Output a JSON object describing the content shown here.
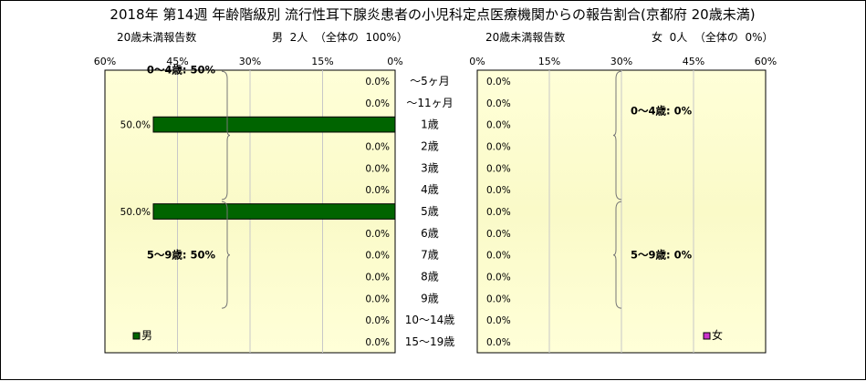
{
  "title": "2018年 第14週 年齢階級別 流行性耳下腺炎患者の小児科定点医療機関からの報告割合(京都府 20歳未満)",
  "header": {
    "left_subtitle": "20歳未満報告数",
    "left_summary": "男  2人  （全体の  100%）",
    "right_subtitle": "20歳未満報告数",
    "right_summary": "女  0人  （全体の  0%）"
  },
  "colors": {
    "male_bar": "#006400",
    "female_legend": "#cc33cc",
    "plot_gradient_edge": "#ffffd8",
    "plot_gradient_center": "#fafac8"
  },
  "chart_data": {
    "type": "bar",
    "orientation": "horizontal-population-pyramid",
    "categories": [
      "～5ヶ月",
      "～11ヶ月",
      "1歳",
      "2歳",
      "3歳",
      "4歳",
      "5歳",
      "6歳",
      "7歳",
      "8歳",
      "9歳",
      "10～14歳",
      "15～19歳"
    ],
    "series": [
      {
        "name": "男",
        "values": [
          0,
          0,
          50,
          0,
          0,
          0,
          50,
          0,
          0,
          0,
          0,
          0,
          0
        ],
        "labels": [
          "0.0%",
          "0.0%",
          "50.0%",
          "0.0%",
          "0.0%",
          "0.0%",
          "50.0%",
          "0.0%",
          "0.0%",
          "0.0%",
          "0.0%",
          "0.0%",
          "0.0%"
        ]
      },
      {
        "name": "女",
        "values": [
          0,
          0,
          0,
          0,
          0,
          0,
          0,
          0,
          0,
          0,
          0,
          0,
          0
        ],
        "labels": [
          "0.0%",
          "0.0%",
          "0.0%",
          "0.0%",
          "0.0%",
          "0.0%",
          "0.0%",
          "0.0%",
          "0.0%",
          "0.0%",
          "0.0%",
          "0.0%",
          "0.0%"
        ]
      }
    ],
    "xlim": [
      0,
      60
    ],
    "x_ticks": [
      "60%",
      "45%",
      "30%",
      "15%",
      "0%"
    ],
    "x_ticks_right": [
      "0%",
      "15%",
      "30%",
      "45%",
      "60%"
    ],
    "grid": "vertical",
    "group_annotations": {
      "left": [
        {
          "label": "0～4歳: 50%",
          "from": 0,
          "to": 5
        },
        {
          "label": "5～9歳: 50%",
          "from": 6,
          "to": 10
        }
      ],
      "right": [
        {
          "label": "0～4歳: 0%",
          "from": 0,
          "to": 5
        },
        {
          "label": "5～9歳: 0%",
          "from": 6,
          "to": 10
        }
      ]
    },
    "legend": {
      "left": "男",
      "right": "女",
      "placement": "bottom"
    }
  }
}
